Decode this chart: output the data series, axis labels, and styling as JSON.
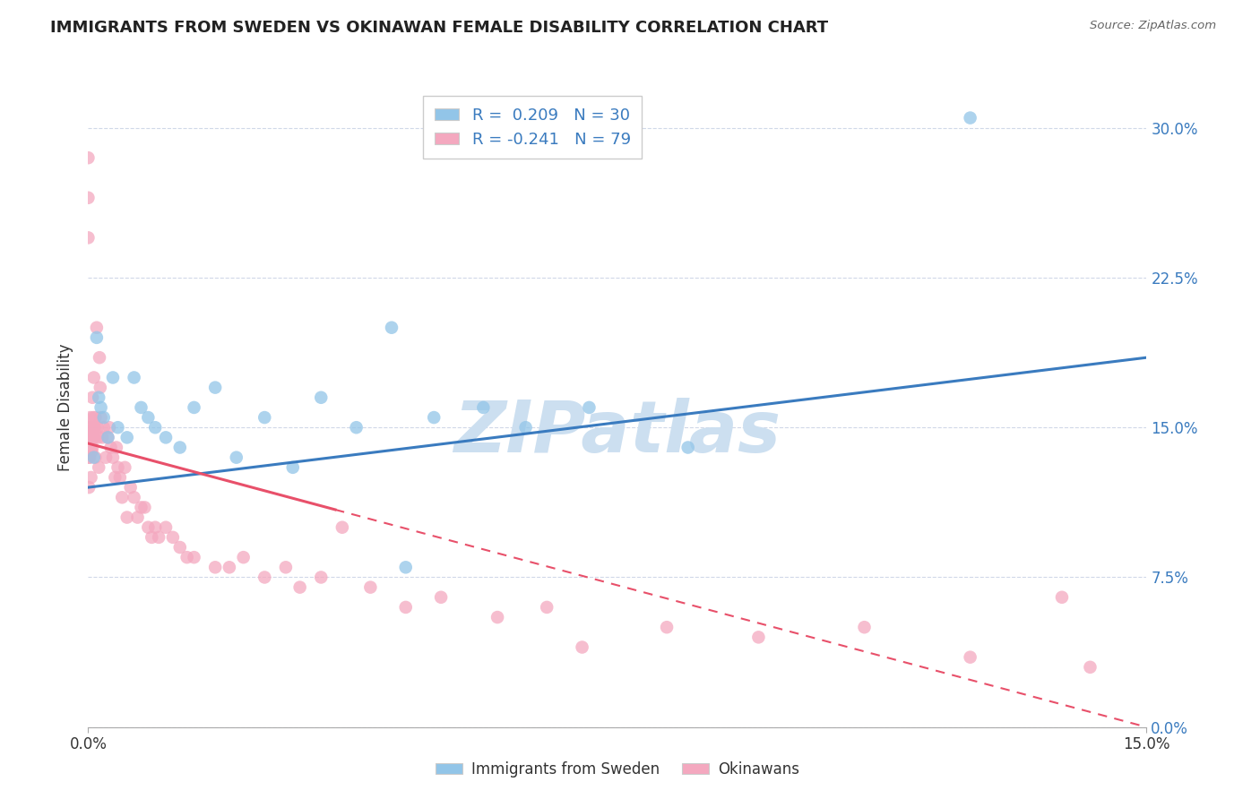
{
  "title": "IMMIGRANTS FROM SWEDEN VS OKINAWAN FEMALE DISABILITY CORRELATION CHART",
  "source": "Source: ZipAtlas.com",
  "ylabel_label": "Female Disability",
  "xlim": [
    0.0,
    15.0
  ],
  "ylim": [
    0.0,
    32.0
  ],
  "yticks": [
    0.0,
    7.5,
    15.0,
    22.5,
    30.0
  ],
  "xticks": [
    0.0,
    15.0
  ],
  "blue_R": 0.209,
  "blue_N": 30,
  "pink_R": -0.241,
  "pink_N": 79,
  "legend_label_blue": "Immigrants from Sweden",
  "legend_label_pink": "Okinawans",
  "blue_color": "#92c5e8",
  "pink_color": "#f4a8bf",
  "blue_line_color": "#3a7bbf",
  "pink_line_color": "#e8506a",
  "watermark": "ZIPatlas",
  "watermark_color": "#ccdff0",
  "background_color": "#ffffff",
  "grid_color": "#d0d8e8",
  "title_color": "#222222",
  "source_color": "#666666",
  "blue_x": [
    0.08,
    0.12,
    0.15,
    0.18,
    0.22,
    0.28,
    0.35,
    0.42,
    0.55,
    0.65,
    0.75,
    0.85,
    0.95,
    1.1,
    1.3,
    1.5,
    1.8,
    2.1,
    2.5,
    2.9,
    3.3,
    3.8,
    4.3,
    4.9,
    5.6,
    6.2,
    7.1,
    8.5,
    4.5,
    12.5
  ],
  "blue_y": [
    13.5,
    19.5,
    16.5,
    16.0,
    15.5,
    14.5,
    17.5,
    15.0,
    14.5,
    17.5,
    16.0,
    15.5,
    15.0,
    14.5,
    14.0,
    16.0,
    17.0,
    13.5,
    15.5,
    13.0,
    16.5,
    15.0,
    20.0,
    15.5,
    16.0,
    15.0,
    16.0,
    14.0,
    8.0,
    30.5
  ],
  "pink_x": [
    0.0,
    0.0,
    0.01,
    0.01,
    0.02,
    0.02,
    0.03,
    0.03,
    0.04,
    0.04,
    0.05,
    0.05,
    0.06,
    0.06,
    0.07,
    0.07,
    0.08,
    0.08,
    0.09,
    0.09,
    0.1,
    0.1,
    0.12,
    0.13,
    0.14,
    0.15,
    0.16,
    0.17,
    0.18,
    0.2,
    0.22,
    0.25,
    0.28,
    0.3,
    0.32,
    0.35,
    0.38,
    0.4,
    0.42,
    0.45,
    0.48,
    0.52,
    0.55,
    0.6,
    0.65,
    0.7,
    0.75,
    0.8,
    0.85,
    0.9,
    0.95,
    1.0,
    1.1,
    1.2,
    1.3,
    1.4,
    1.5,
    1.8,
    2.0,
    2.2,
    2.5,
    2.8,
    3.0,
    3.3,
    3.6,
    4.0,
    4.5,
    5.0,
    5.8,
    6.5,
    7.0,
    8.2,
    9.5,
    11.0,
    12.5,
    13.8,
    14.2,
    0.0,
    0.01
  ],
  "pink_y": [
    26.5,
    28.5,
    14.5,
    13.5,
    13.5,
    15.0,
    15.5,
    14.5,
    12.5,
    14.5,
    15.0,
    13.8,
    14.0,
    16.5,
    15.5,
    14.5,
    15.0,
    17.5,
    15.0,
    14.5,
    13.5,
    15.5,
    20.0,
    15.0,
    14.5,
    13.0,
    18.5,
    17.0,
    15.5,
    14.5,
    15.0,
    13.5,
    14.5,
    15.0,
    14.0,
    13.5,
    12.5,
    14.0,
    13.0,
    12.5,
    11.5,
    13.0,
    10.5,
    12.0,
    11.5,
    10.5,
    11.0,
    11.0,
    10.0,
    9.5,
    10.0,
    9.5,
    10.0,
    9.5,
    9.0,
    8.5,
    8.5,
    8.0,
    8.0,
    8.5,
    7.5,
    8.0,
    7.0,
    7.5,
    10.0,
    7.0,
    6.0,
    6.5,
    5.5,
    6.0,
    4.0,
    5.0,
    4.5,
    5.0,
    3.5,
    6.5,
    3.0,
    24.5,
    12.0
  ],
  "pink_solid_xmax": 3.5,
  "blue_trend_y0": 12.0,
  "blue_trend_y1": 18.5,
  "pink_trend_y0": 14.2,
  "pink_trend_y1": 0.0
}
